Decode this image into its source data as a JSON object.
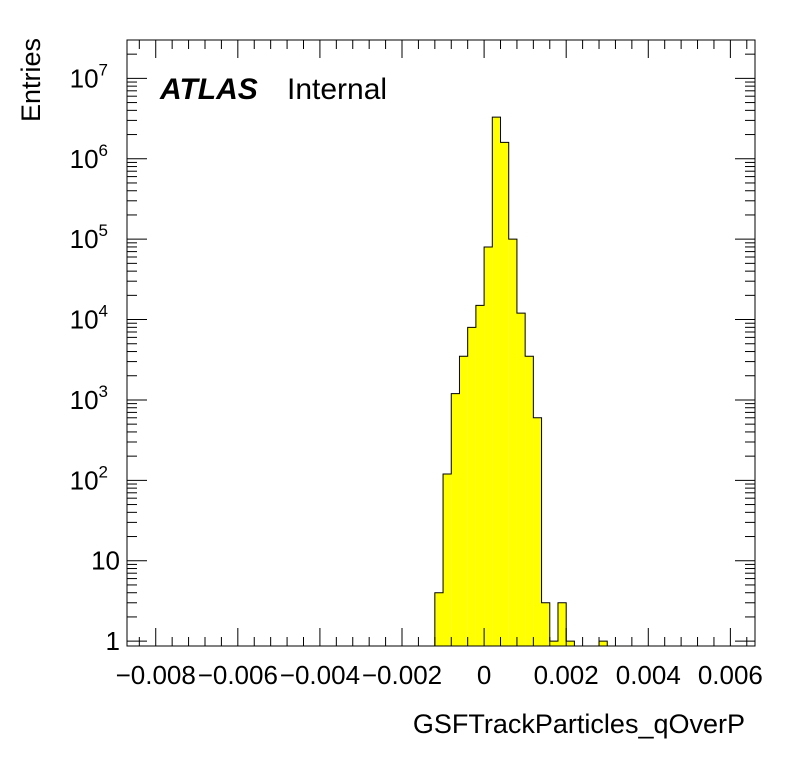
{
  "chart_data": {
    "type": "bar",
    "title": "",
    "xlabel": "GSFTrackParticles_qOverP",
    "ylabel": "Entries",
    "xlim": [
      -0.0087,
      0.0066
    ],
    "ylim": [
      0.87,
      30000000
    ],
    "y_scale": "log",
    "grid": false,
    "legend": "none",
    "fill_color": "#ffff00",
    "line_color": "#000000",
    "label": {
      "experiment": "ATLAS",
      "status": "Internal"
    },
    "x_ticks": [
      {
        "value": -0.008,
        "label": "−0.008"
      },
      {
        "value": -0.006,
        "label": "−0.006"
      },
      {
        "value": -0.004,
        "label": "−0.004"
      },
      {
        "value": -0.002,
        "label": "−0.002"
      },
      {
        "value": 0,
        "label": "0"
      },
      {
        "value": 0.002,
        "label": "0.002"
      },
      {
        "value": 0.004,
        "label": "0.004"
      },
      {
        "value": 0.006,
        "label": "0.006"
      }
    ],
    "y_ticks": [
      {
        "value": 1,
        "label": "1",
        "exp": ""
      },
      {
        "value": 10,
        "label": "10",
        "exp": ""
      },
      {
        "value": 100,
        "label": "10",
        "exp": "2"
      },
      {
        "value": 1000,
        "label": "10",
        "exp": "3"
      },
      {
        "value": 10000,
        "label": "10",
        "exp": "4"
      },
      {
        "value": 100000,
        "label": "10",
        "exp": "5"
      },
      {
        "value": 1000000,
        "label": "10",
        "exp": "6"
      },
      {
        "value": 10000000,
        "label": "10",
        "exp": "7"
      }
    ],
    "bins": {
      "width": 0.0002,
      "low_edges": [
        -0.0012,
        -0.001,
        -0.0008,
        -0.0006,
        -0.0004,
        -0.0002,
        0.0,
        0.0002,
        0.0004,
        0.0006,
        0.0008,
        0.001,
        0.0012,
        0.0014,
        0.0016,
        0.0018,
        0.002,
        0.0022,
        0.0024,
        0.0026,
        0.0028
      ],
      "counts": [
        4,
        120,
        1200,
        3500,
        8000,
        15000,
        80000,
        3300000,
        1600000,
        100000,
        12000,
        3500,
        600,
        3,
        1,
        3,
        1,
        0,
        0,
        0,
        1
      ]
    }
  }
}
